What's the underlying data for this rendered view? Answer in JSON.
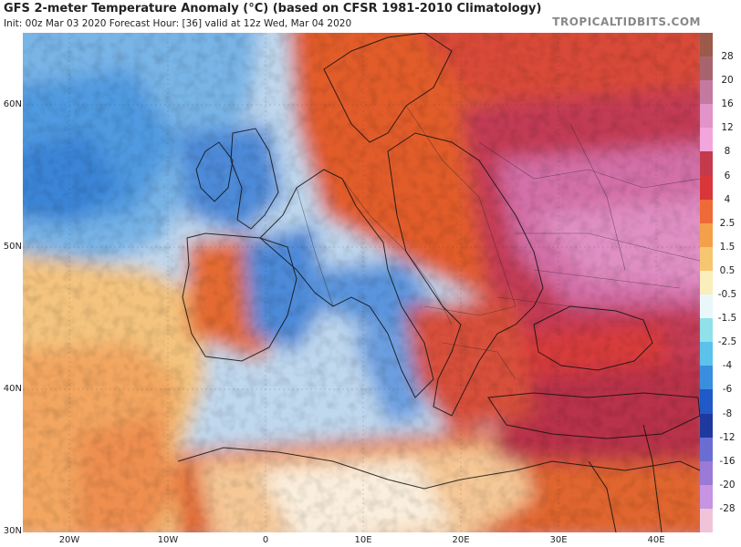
{
  "header": {
    "title": "GFS 2-meter Temperature Anomaly (°C) (based on CFSR 1981-2010 Climatology)",
    "subtitle": "Init: 00z Mar 03 2020   Forecast Hour: [36]   valid at 12z Wed, Mar 04 2020",
    "brand": "TROPICALTIDBITS.COM"
  },
  "axes": {
    "latitude_labels": [
      "60N",
      "50N",
      "40N",
      "30N"
    ],
    "longitude_labels": [
      "20W",
      "10W",
      "0",
      "10E",
      "20E",
      "30E",
      "40E"
    ]
  },
  "legend": {
    "levels": [
      "28",
      "20",
      "16",
      "12",
      "8",
      "6",
      "4",
      "2.5",
      "1.5",
      "0.5",
      "-0.5",
      "-1.5",
      "-2.5",
      "-4",
      "-6",
      "-8",
      "-12",
      "-16",
      "-20",
      "-28"
    ],
    "colors": [
      "#9c5a4a",
      "#a8646e",
      "#c47aa0",
      "#e293c8",
      "#f2a6dc",
      "#c43a4c",
      "#d8363a",
      "#ee6a36",
      "#f4a04a",
      "#f6c670",
      "#faeebb",
      "#eaf7fa",
      "#8fe2ea",
      "#5bc2ec",
      "#3a8ede",
      "#1f5ac6",
      "#1e3a9e",
      "#6a6ed2",
      "#9a7ad6",
      "#c694e2",
      "#f0c4d8"
    ]
  },
  "map": {
    "region": "Europe / North Atlantic",
    "theme": {
      "cold": "#3a7ed8",
      "neutral": "#f4f0e0",
      "warm": "#e0602e",
      "very_warm": "#c03048",
      "extreme": "#d67fc0"
    }
  }
}
